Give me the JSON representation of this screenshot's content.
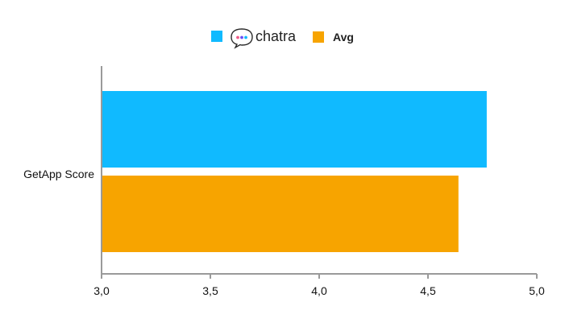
{
  "chart_data": {
    "type": "bar",
    "orientation": "horizontal",
    "title": "",
    "xlabel": "",
    "ylabel": "",
    "categories": [
      "GetApp Score"
    ],
    "series": [
      {
        "name": "chatra",
        "values": [
          4.77
        ],
        "color": "#10BAFF",
        "legend_icon": "chatra-logo-icon"
      },
      {
        "name": "Avg",
        "values": [
          4.64
        ],
        "color": "#F7A400"
      }
    ],
    "xlim": [
      3.0,
      5.0
    ],
    "xticks": [
      "3,0",
      "3,5",
      "4,0",
      "4,5",
      "5,0"
    ],
    "xtick_values": [
      3.0,
      3.5,
      4.0,
      4.5,
      5.0
    ],
    "grid": false,
    "legend_position": "top-center"
  }
}
